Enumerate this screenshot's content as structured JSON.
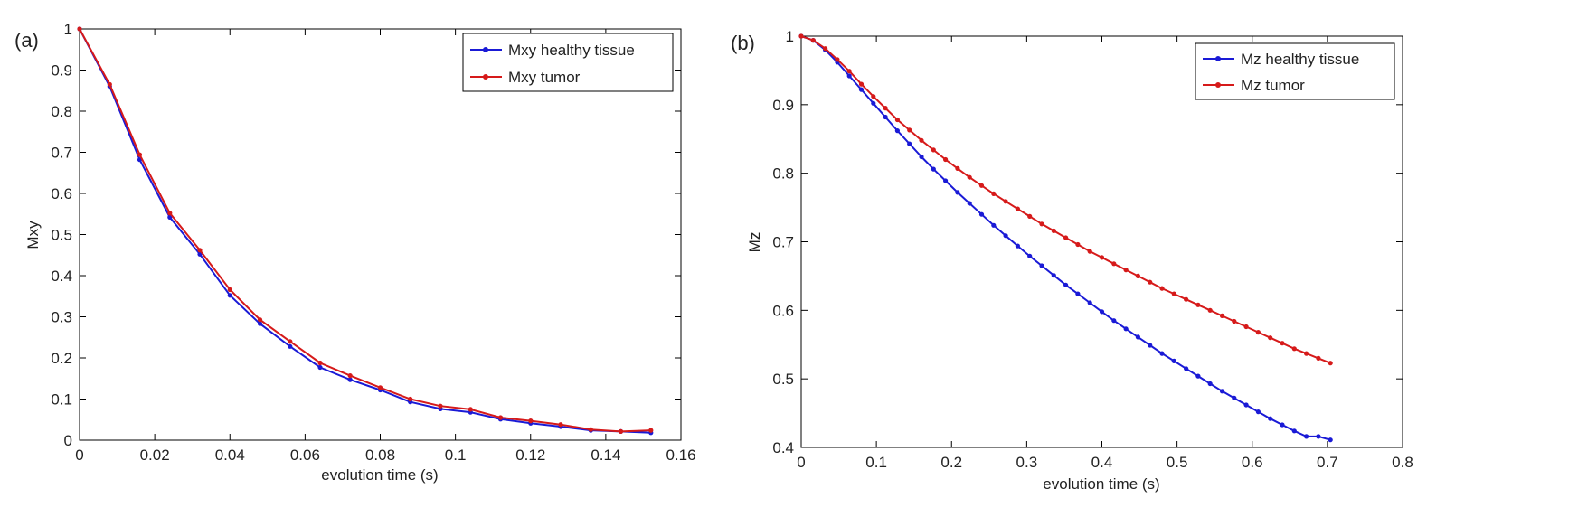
{
  "figure": {
    "background": "#ffffff"
  },
  "colors": {
    "healthy": "#1a1ad6",
    "tumor": "#d61a1a",
    "axis": "#000000"
  },
  "chart_data": [
    {
      "panel": "(a)",
      "type": "line",
      "title": "",
      "xlabel": "evolution time (s)",
      "ylabel": "Mxy",
      "xlim": [
        0,
        0.16
      ],
      "ylim": [
        0,
        1
      ],
      "xticks": [
        0,
        0.02,
        0.04,
        0.06,
        0.08,
        0.1,
        0.12,
        0.14,
        0.16
      ],
      "xtick_labels": [
        "0",
        "0.02",
        "0.04",
        "0.06",
        "0.08",
        "0.1",
        "0.12",
        "0.14",
        "0.16"
      ],
      "yticks": [
        0,
        0.1,
        0.2,
        0.3,
        0.4,
        0.5,
        0.6,
        0.7,
        0.8,
        0.9,
        1
      ],
      "ytick_labels": [
        "0",
        "0.1",
        "0.2",
        "0.3",
        "0.4",
        "0.5",
        "0.6",
        "0.7",
        "0.8",
        "0.9",
        "1"
      ],
      "legend_location": "top-right",
      "series": [
        {
          "name": "Mxy healthy tissue",
          "color_key": "healthy",
          "x": [
            0,
            0.008,
            0.016,
            0.024,
            0.032,
            0.04,
            0.048,
            0.056,
            0.064,
            0.072,
            0.08,
            0.088,
            0.096,
            0.104,
            0.112,
            0.12,
            0.128,
            0.136,
            0.144,
            0.152
          ],
          "y": [
            1.0,
            0.86,
            0.682,
            0.542,
            0.452,
            0.352,
            0.283,
            0.228,
            0.177,
            0.147,
            0.122,
            0.093,
            0.076,
            0.068,
            0.051,
            0.041,
            0.033,
            0.024,
            0.021,
            0.018
          ]
        },
        {
          "name": "Mxy tumor",
          "color_key": "tumor",
          "x": [
            0,
            0.008,
            0.016,
            0.024,
            0.032,
            0.04,
            0.048,
            0.056,
            0.064,
            0.072,
            0.08,
            0.088,
            0.096,
            0.104,
            0.112,
            0.12,
            0.128,
            0.136,
            0.144,
            0.152
          ],
          "y": [
            1.0,
            0.865,
            0.694,
            0.552,
            0.462,
            0.366,
            0.293,
            0.24,
            0.188,
            0.157,
            0.128,
            0.1,
            0.083,
            0.075,
            0.055,
            0.047,
            0.038,
            0.026,
            0.021,
            0.024
          ]
        }
      ]
    },
    {
      "panel": "(b)",
      "type": "line",
      "title": "",
      "xlabel": "evolution time (s)",
      "ylabel": "Mz",
      "xlim": [
        0,
        0.8
      ],
      "ylim": [
        0.4,
        1
      ],
      "xticks": [
        0,
        0.1,
        0.2,
        0.3,
        0.4,
        0.5,
        0.6,
        0.7,
        0.8
      ],
      "xtick_labels": [
        "0",
        "0.1",
        "0.2",
        "0.3",
        "0.4",
        "0.5",
        "0.6",
        "0.7",
        "0.8"
      ],
      "yticks": [
        0.4,
        0.5,
        0.6,
        0.7,
        0.8,
        0.9,
        1
      ],
      "ytick_labels": [
        "0.4",
        "0.5",
        "0.6",
        "0.7",
        "0.8",
        "0.9",
        "1"
      ],
      "legend_location": "top-right",
      "series": [
        {
          "name": "Mz healthy tissue",
          "color_key": "healthy",
          "x": [
            0,
            0.016,
            0.032,
            0.048,
            0.064,
            0.08,
            0.096,
            0.112,
            0.128,
            0.144,
            0.16,
            0.176,
            0.192,
            0.208,
            0.224,
            0.24,
            0.256,
            0.272,
            0.288,
            0.304,
            0.32,
            0.336,
            0.352,
            0.368,
            0.384,
            0.4,
            0.416,
            0.432,
            0.448,
            0.464,
            0.48,
            0.496,
            0.512,
            0.528,
            0.544,
            0.56,
            0.576,
            0.592,
            0.608,
            0.624,
            0.64,
            0.656,
            0.672,
            0.688,
            0.704
          ],
          "y": [
            1.0,
            0.994,
            0.98,
            0.962,
            0.942,
            0.922,
            0.902,
            0.882,
            0.862,
            0.843,
            0.824,
            0.806,
            0.789,
            0.772,
            0.756,
            0.74,
            0.724,
            0.709,
            0.694,
            0.679,
            0.665,
            0.651,
            0.637,
            0.624,
            0.611,
            0.598,
            0.585,
            0.573,
            0.561,
            0.549,
            0.537,
            0.526,
            0.515,
            0.504,
            0.493,
            0.482,
            0.472,
            0.462,
            0.452,
            0.442,
            0.433,
            0.424,
            0.416,
            0.416,
            0.411
          ]
        },
        {
          "name": "Mz tumor",
          "color_key": "tumor",
          "x": [
            0,
            0.016,
            0.032,
            0.048,
            0.064,
            0.08,
            0.096,
            0.112,
            0.128,
            0.144,
            0.16,
            0.176,
            0.192,
            0.208,
            0.224,
            0.24,
            0.256,
            0.272,
            0.288,
            0.304,
            0.32,
            0.336,
            0.352,
            0.368,
            0.384,
            0.4,
            0.416,
            0.432,
            0.448,
            0.464,
            0.48,
            0.496,
            0.512,
            0.528,
            0.544,
            0.56,
            0.576,
            0.592,
            0.608,
            0.624,
            0.64,
            0.656,
            0.672,
            0.688,
            0.704
          ],
          "y": [
            1.0,
            0.994,
            0.982,
            0.966,
            0.949,
            0.93,
            0.912,
            0.895,
            0.878,
            0.863,
            0.848,
            0.834,
            0.82,
            0.807,
            0.794,
            0.782,
            0.77,
            0.759,
            0.748,
            0.737,
            0.726,
            0.716,
            0.706,
            0.696,
            0.686,
            0.677,
            0.668,
            0.659,
            0.65,
            0.641,
            0.632,
            0.624,
            0.616,
            0.608,
            0.6,
            0.592,
            0.584,
            0.576,
            0.568,
            0.56,
            0.552,
            0.544,
            0.537,
            0.53,
            0.523
          ]
        }
      ]
    }
  ]
}
